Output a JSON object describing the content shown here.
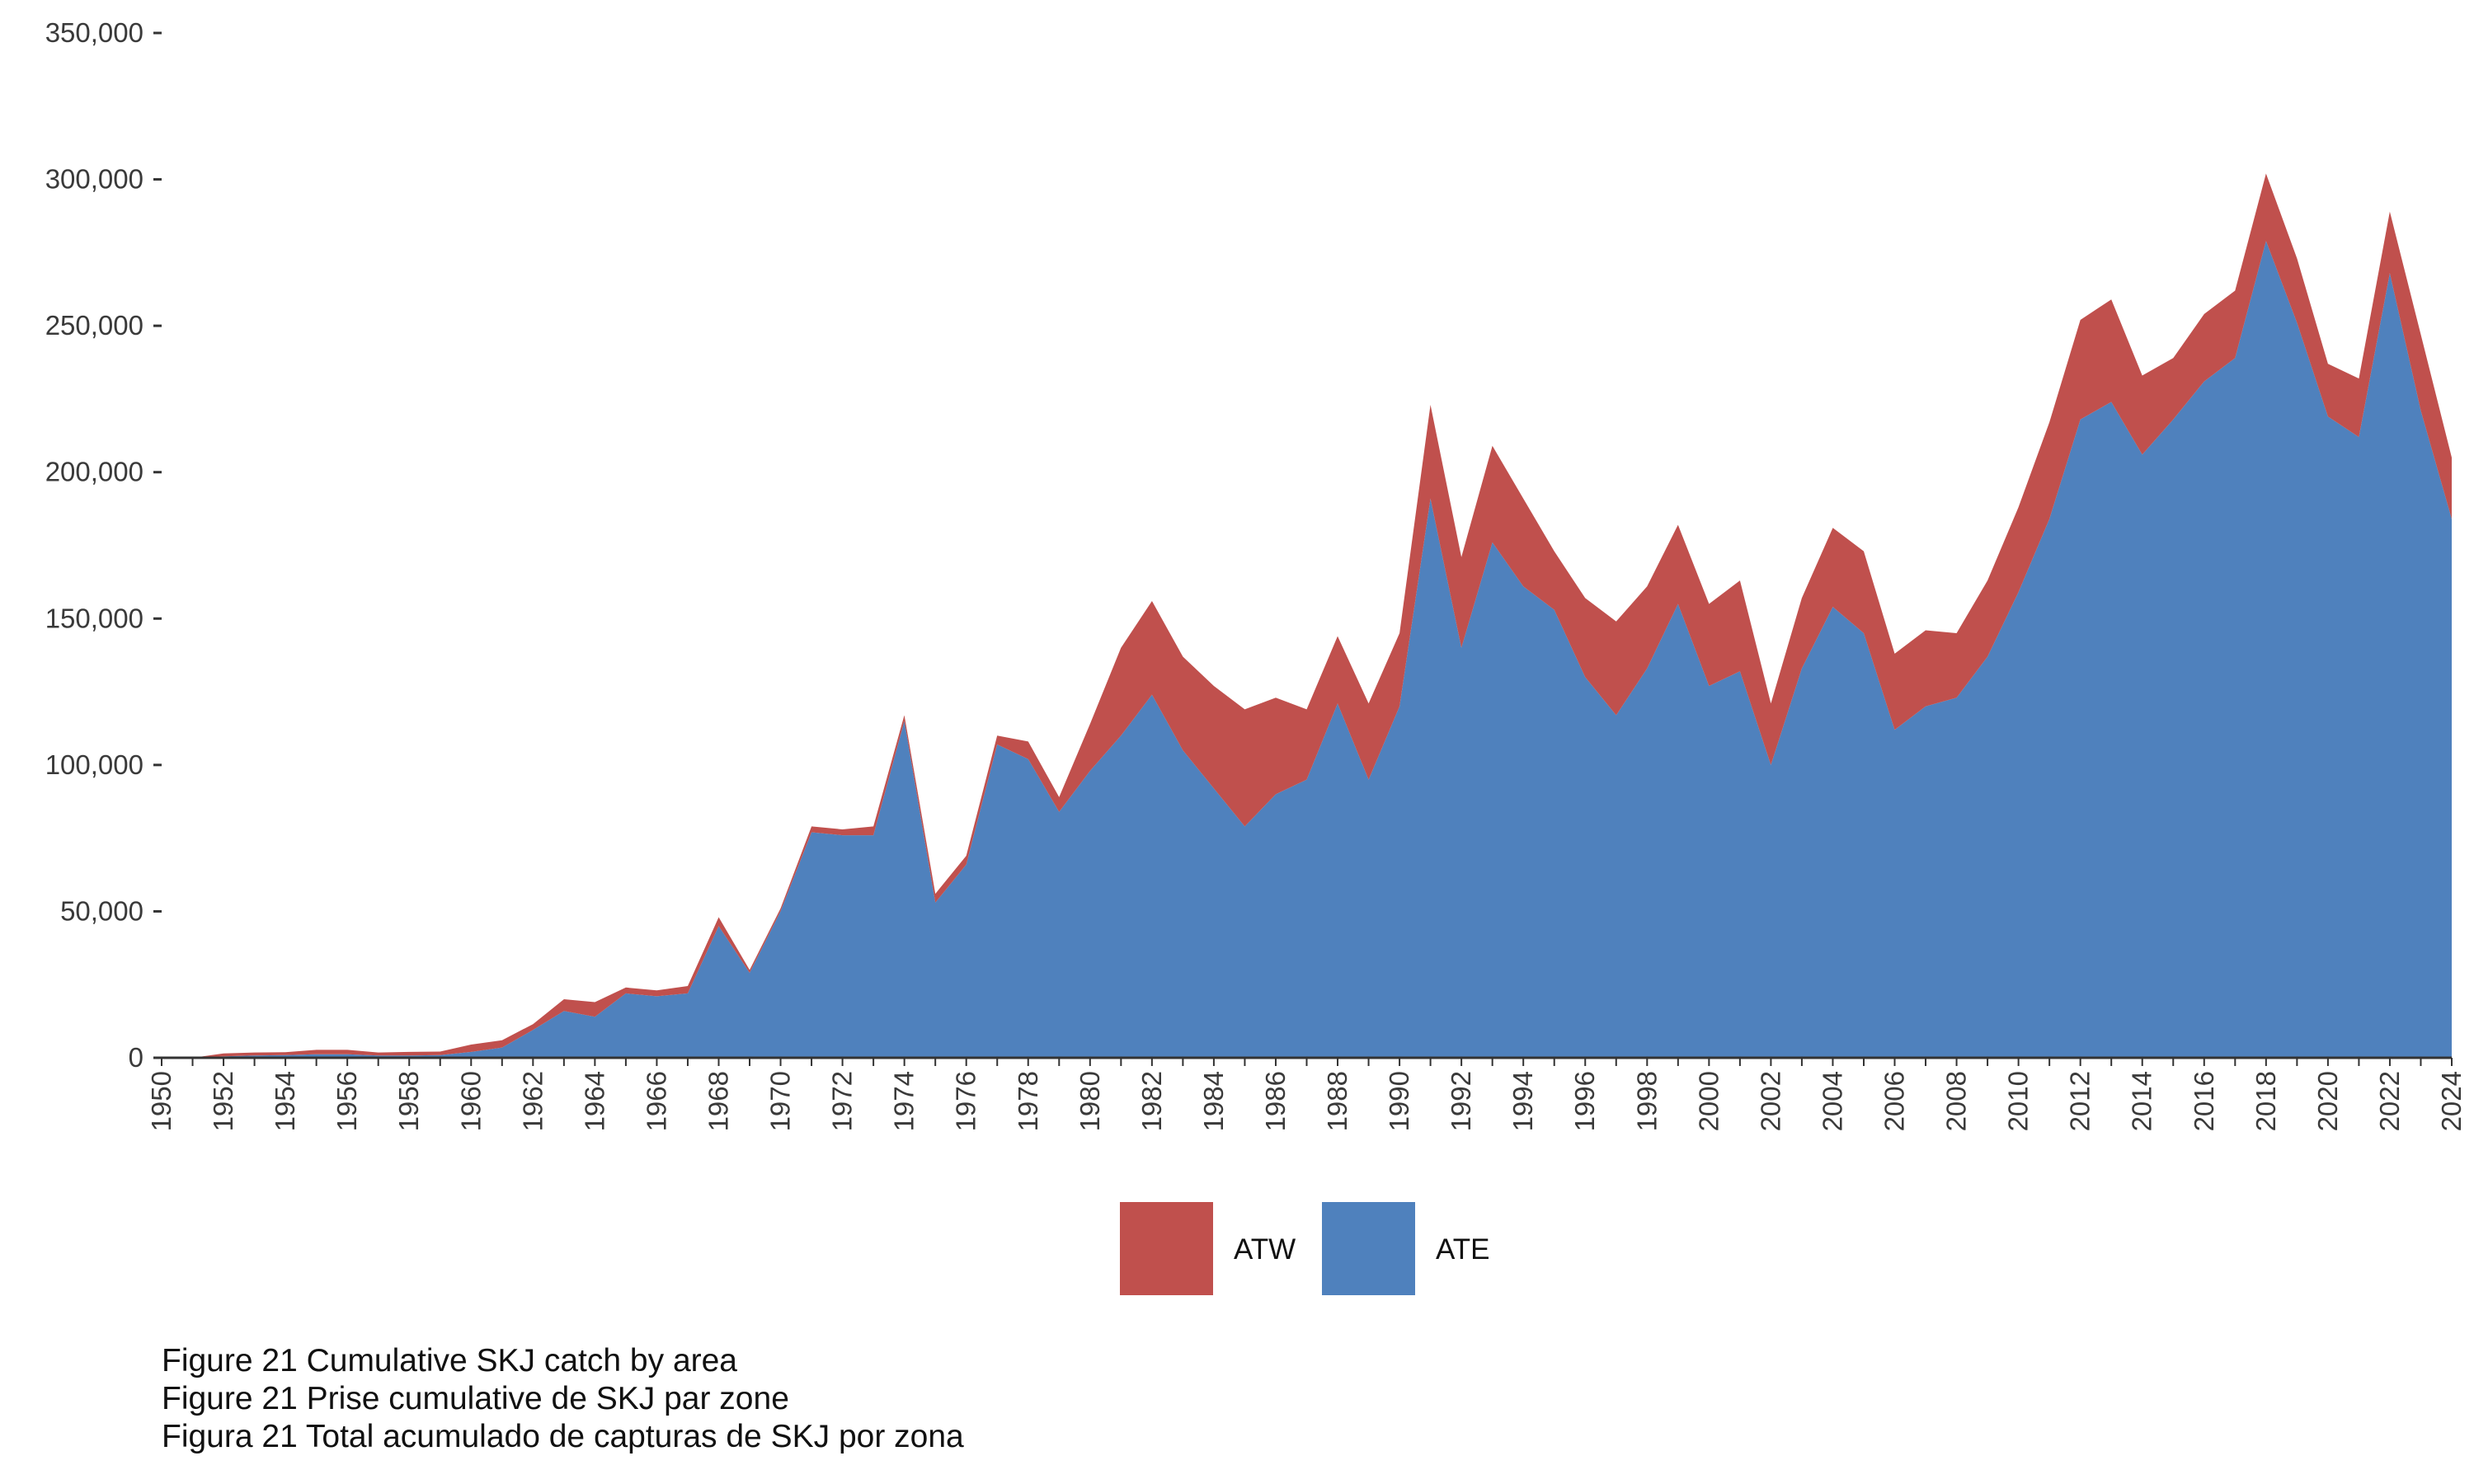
{
  "chart_data": {
    "type": "area",
    "stacked": true,
    "x": [
      1950,
      1951,
      1952,
      1953,
      1954,
      1955,
      1956,
      1957,
      1958,
      1959,
      1960,
      1961,
      1962,
      1963,
      1964,
      1965,
      1966,
      1967,
      1968,
      1969,
      1970,
      1971,
      1972,
      1973,
      1974,
      1975,
      1976,
      1977,
      1978,
      1979,
      1980,
      1981,
      1982,
      1983,
      1984,
      1985,
      1986,
      1987,
      1988,
      1989,
      1990,
      1991,
      1992,
      1993,
      1994,
      1995,
      1996,
      1997,
      1998,
      1999,
      2000,
      2001,
      2002,
      2003,
      2004,
      2005,
      2006,
      2007,
      2008,
      2009,
      2010,
      2011,
      2012,
      2013,
      2014,
      2015,
      2016,
      2017,
      2018,
      2019,
      2020,
      2021,
      2022,
      2023,
      2024
    ],
    "series": [
      {
        "name": "ATE",
        "color": "#4f81bd",
        "values": [
          0,
          0,
          500,
          800,
          900,
          1200,
          1200,
          800,
          800,
          900,
          2000,
          3500,
          9500,
          16000,
          14000,
          22000,
          21000,
          22000,
          45000,
          29000,
          50000,
          77000,
          76000,
          76000,
          115000,
          53000,
          66000,
          107000,
          102000,
          84000,
          98000,
          110000,
          124000,
          105000,
          92000,
          79000,
          90000,
          95000,
          121000,
          95000,
          120000,
          191000,
          140000,
          176000,
          161000,
          153000,
          130000,
          117000,
          133000,
          155000,
          127000,
          132000,
          100000,
          133000,
          154000,
          145000,
          112000,
          120000,
          123000,
          137000,
          159000,
          184000,
          218000,
          224000,
          206000,
          218000,
          231000,
          239000,
          279000,
          251000,
          219000,
          212000,
          268000,
          221000,
          184000
        ]
      },
      {
        "name": "ATW",
        "color": "#c0504d",
        "values": [
          0,
          0,
          1000,
          1000,
          1000,
          1500,
          1500,
          1000,
          1200,
          1200,
          2500,
          2500,
          2000,
          4000,
          5000,
          2000,
          2000,
          2500,
          3000,
          1000,
          1000,
          2000,
          2000,
          3000,
          2000,
          3000,
          3000,
          3000,
          6000,
          5000,
          16000,
          30000,
          32000,
          32000,
          35000,
          40000,
          33000,
          24000,
          23000,
          26000,
          25000,
          32000,
          31000,
          33000,
          30000,
          20000,
          27000,
          32000,
          28000,
          27000,
          28000,
          31000,
          21000,
          24000,
          27000,
          28000,
          26000,
          26000,
          22000,
          26000,
          29000,
          33000,
          34000,
          35000,
          27000,
          21000,
          23000,
          23000,
          23000,
          22000,
          18000,
          20000,
          21000,
          26000,
          21000
        ]
      }
    ],
    "ylim": [
      0,
      350000
    ],
    "y_ticks": [
      "0",
      "50,000",
      "100,000",
      "150,000",
      "200,000",
      "250,000",
      "300,000",
      "350,000"
    ],
    "x_tick_labels": [
      "1950",
      "1952",
      "1954",
      "1956",
      "1958",
      "1960",
      "1962",
      "1964",
      "1966",
      "1968",
      "1970",
      "1972",
      "1974",
      "1976",
      "1978",
      "1980",
      "1982",
      "1984",
      "1986",
      "1988",
      "1990",
      "1992",
      "1994",
      "1996",
      "1998",
      "2000",
      "2002",
      "2004",
      "2006",
      "2008",
      "2010",
      "2012",
      "2014",
      "2016",
      "2018",
      "2020",
      "2022",
      "2024"
    ],
    "legend": [
      {
        "label": "ATW",
        "color": "#c0504d"
      },
      {
        "label": "ATE",
        "color": "#4f81bd"
      }
    ],
    "legend_position": "bottom",
    "grid": false
  },
  "caption": [
    "Figure 21 Cumulative SKJ catch by area",
    "Figure 21 Prise cumulative de SKJ par zone",
    "Figura 21 Total acumulado de capturas de SKJ por zona"
  ]
}
